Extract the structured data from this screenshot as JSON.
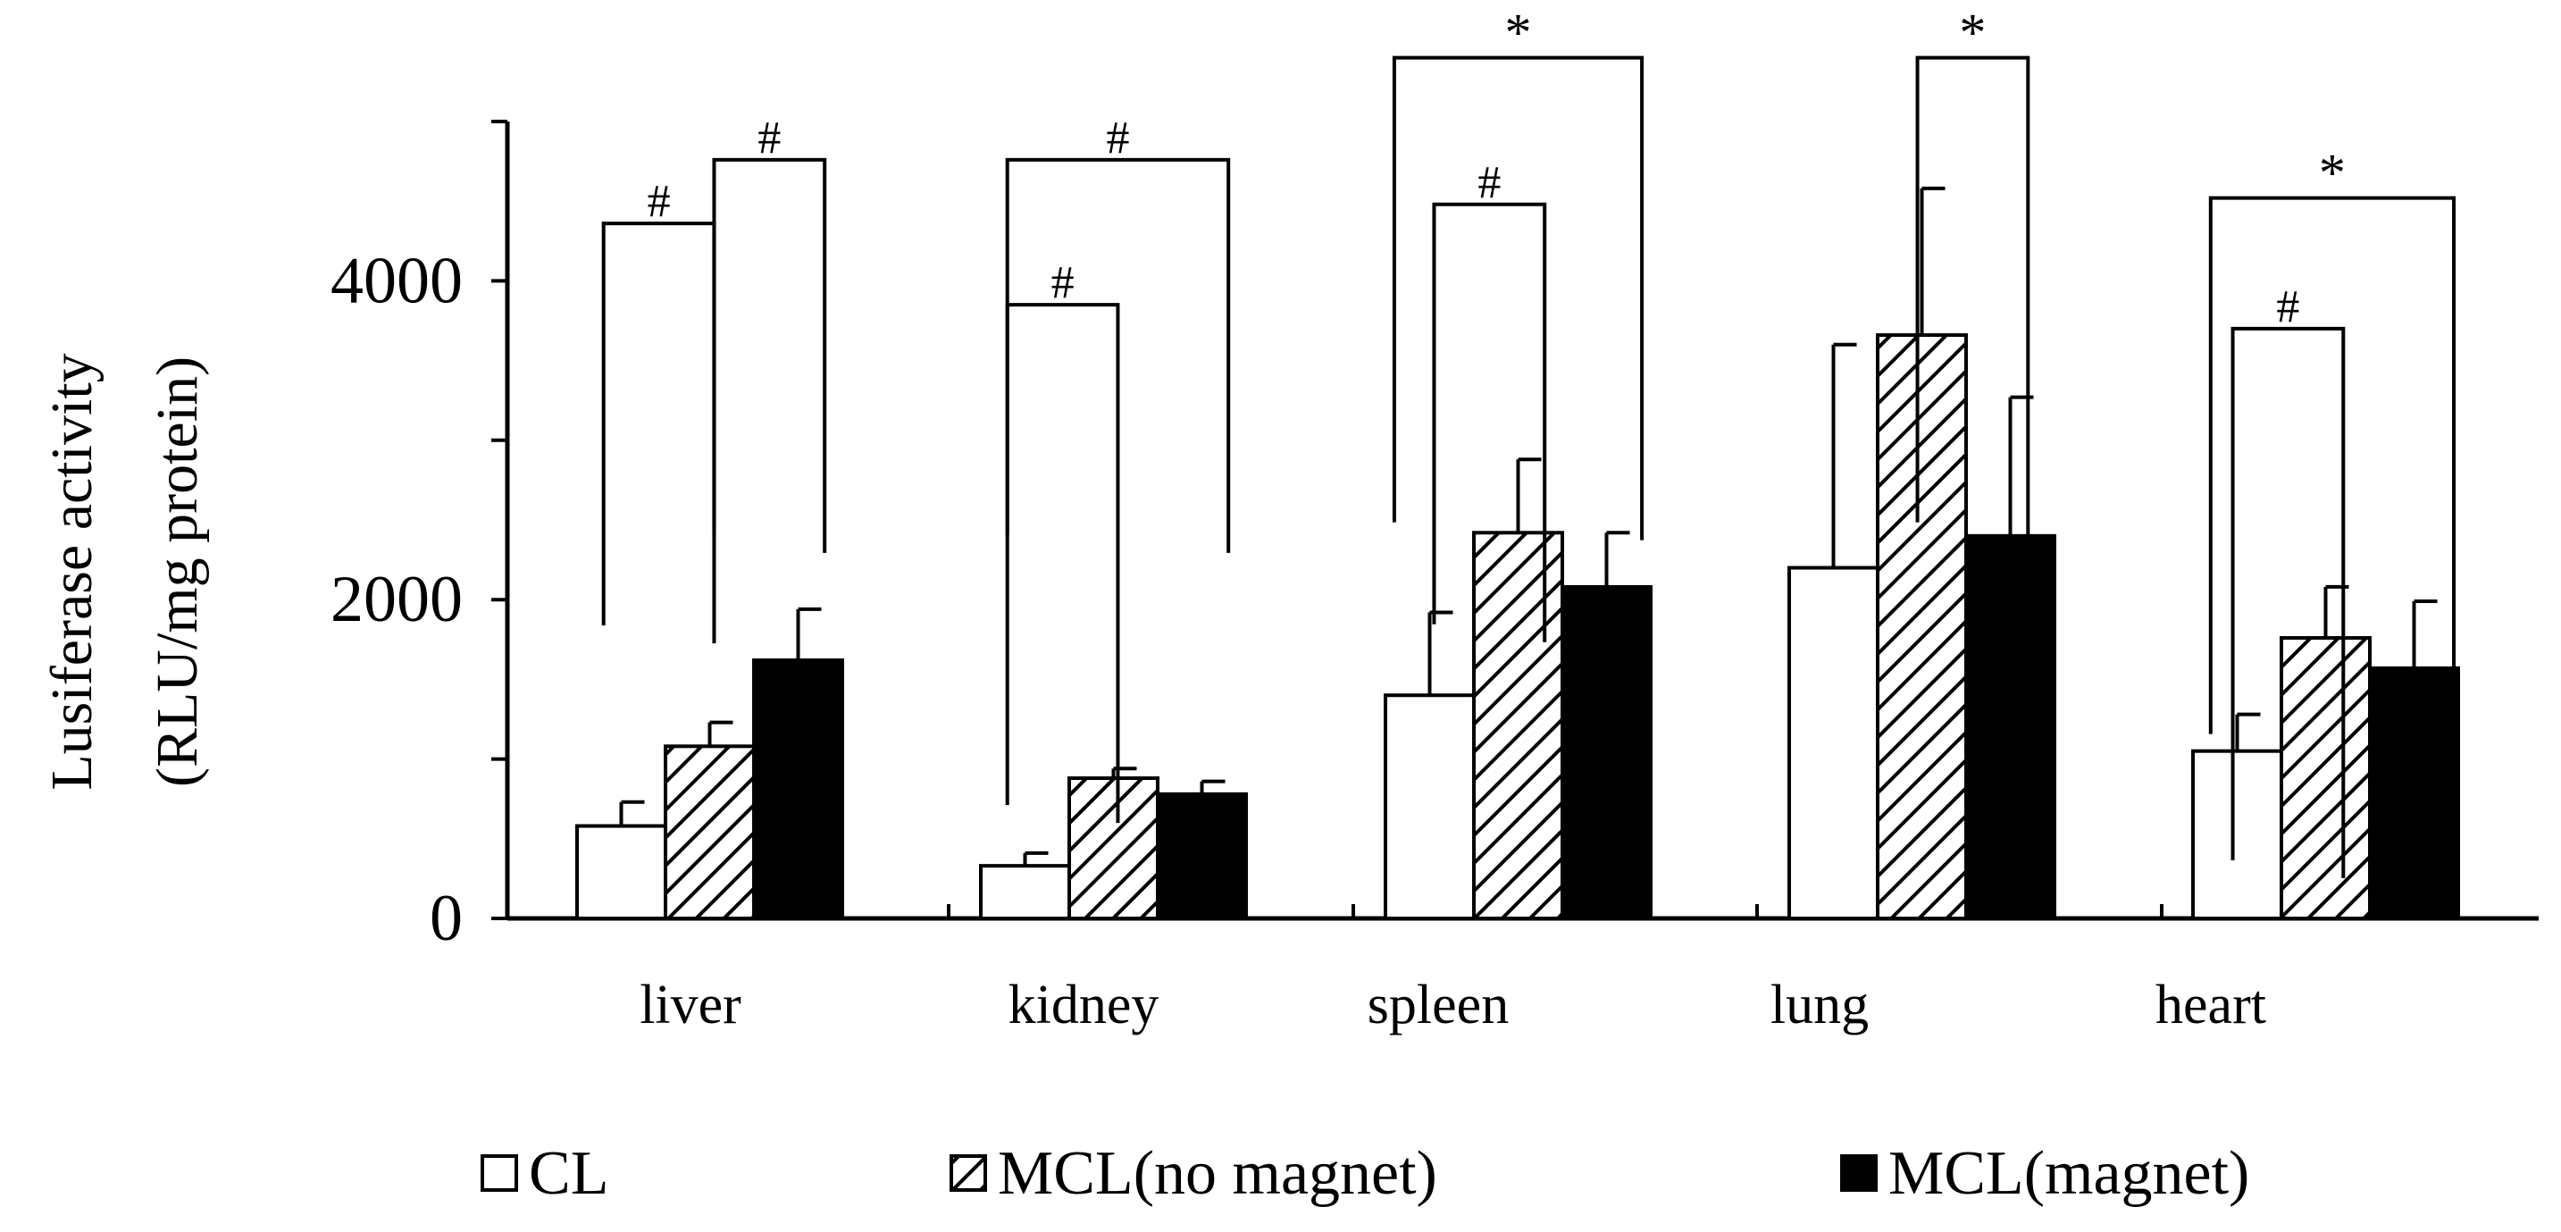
{
  "chart_data": {
    "type": "bar",
    "title": "",
    "xlabel": "",
    "ylabel_line1": "Lusiferase activity",
    "ylabel_line2": "(RLU/mg protein)",
    "ylim": [
      0,
      5000
    ],
    "yticks": [
      0,
      2000,
      4000
    ],
    "ytick_labels": [
      "0",
      "2000",
      "4000"
    ],
    "minor_yticks": [
      1000,
      3000,
      5000
    ],
    "categories": [
      "liver",
      "kidney",
      "spleen",
      "lung",
      "heart"
    ],
    "series": [
      {
        "name": "CL",
        "fill": "white",
        "values": [
          580,
          330,
          1400,
          2200,
          1050
        ],
        "errors": [
          150,
          80,
          520,
          1400,
          230
        ]
      },
      {
        "name": "MCL(no magnet)",
        "fill": "hatch",
        "values": [
          1080,
          880,
          2420,
          3660,
          1760
        ],
        "errors": [
          150,
          60,
          460,
          920,
          320
        ]
      },
      {
        "name": "MCL(magnet)",
        "fill": "black",
        "values": [
          1620,
          780,
          2080,
          2400,
          1570
        ],
        "errors": [
          320,
          80,
          340,
          870,
          420
        ]
      }
    ],
    "significance": [
      {
        "category": 0,
        "from": 0,
        "to": 1,
        "label": "#",
        "level": 4360
      },
      {
        "category": 0,
        "from": 1,
        "to": 2,
        "label": "#",
        "level": 4760
      },
      {
        "category": 1,
        "from": 0,
        "to": 1,
        "label": "#",
        "level": 3850
      },
      {
        "category": 1,
        "from": 0,
        "to": 2,
        "label": "#",
        "level": 4760
      },
      {
        "category": 2,
        "from": 0,
        "to": 1,
        "label": "#",
        "level": 4480
      },
      {
        "category": 2,
        "from": 0,
        "to": 2,
        "label": "*",
        "level": 5400
      },
      {
        "category": 3,
        "from": 1,
        "to": 2,
        "label": "*",
        "level": 5400
      },
      {
        "category": 4,
        "from": 0,
        "to": 1,
        "label": "#",
        "level": 3700
      },
      {
        "category": 4,
        "from": 0,
        "to": 2,
        "label": "*",
        "level": 4520
      }
    ],
    "legend": [
      {
        "label": "CL",
        "fill": "white"
      },
      {
        "label": "MCL(no magnet)",
        "fill": "hatch"
      },
      {
        "label": "MCL(magnet)",
        "fill": "black"
      }
    ],
    "legend_position": "bottom",
    "grid": false
  }
}
